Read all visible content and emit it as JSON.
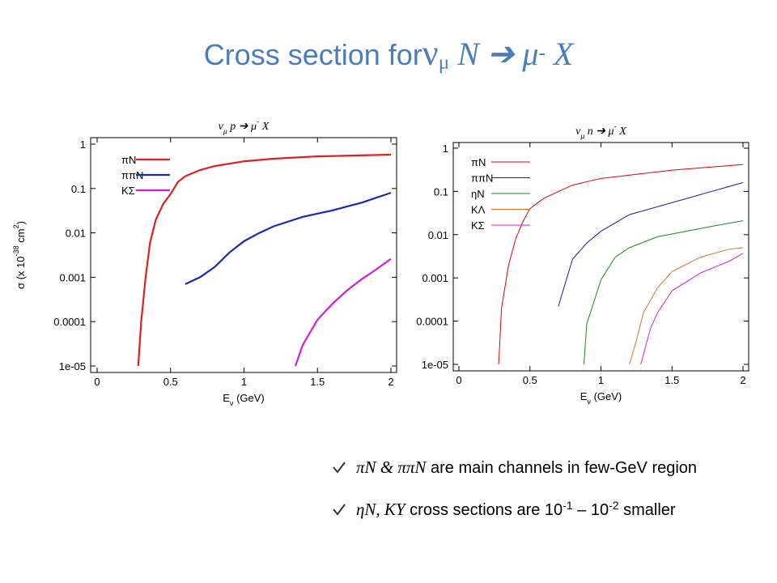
{
  "title": [
    "Cross section for",
    "ν",
    "μ",
    " N ➔ μ",
    "-",
    " X"
  ],
  "bullets": [
    [
      "πN & ππN",
      " are main channels in few-GeV region"
    ],
    [
      "ηN, KY",
      " cross sections are 10",
      "-1",
      " – 10",
      "-2",
      " smaller"
    ]
  ],
  "chart_data": [
    {
      "type": "line",
      "title": [
        "ν",
        "μ",
        " p ➔ μ",
        "-",
        " X"
      ],
      "xlabel": [
        "E",
        "ν",
        " (GeV)"
      ],
      "ylabel": [
        "σ (x 10",
        "-38",
        " cm",
        "2",
        ")"
      ],
      "log_y": true,
      "legend": "upper left",
      "xlim": [
        0,
        2
      ],
      "xticks": [
        0,
        0.5,
        1,
        1.5,
        2
      ],
      "ylim": [
        1e-05,
        1
      ],
      "yticks": [
        {
          "value": 1e-05,
          "label": "1e-05"
        },
        0.0001,
        0.001,
        0.01,
        0.1,
        1
      ],
      "series": [
        {
          "name": "πN",
          "color": "#e02020",
          "x": [
            0.28,
            0.3,
            0.33,
            0.36,
            0.4,
            0.45,
            0.5,
            0.55,
            0.6,
            0.7,
            0.8,
            1.0,
            1.2,
            1.5,
            2.0
          ],
          "values": [
            1e-05,
            0.0001,
            0.001,
            0.006,
            0.02,
            0.045,
            0.075,
            0.14,
            0.19,
            0.26,
            0.32,
            0.41,
            0.47,
            0.53,
            0.58
          ]
        },
        {
          "name": "ππN",
          "color": "#1a2ab0",
          "x": [
            0.6,
            0.7,
            0.8,
            0.9,
            1.0,
            1.1,
            1.2,
            1.4,
            1.6,
            1.8,
            2.0
          ],
          "values": [
            0.0007,
            0.001,
            0.0017,
            0.0036,
            0.0065,
            0.0098,
            0.014,
            0.023,
            0.032,
            0.048,
            0.08
          ]
        },
        {
          "name": "KΣ",
          "color": "#d020d0",
          "x": [
            1.35,
            1.4,
            1.5,
            1.6,
            1.7,
            1.8,
            1.9,
            2.0
          ],
          "values": [
            1e-05,
            3e-05,
            0.00011,
            0.00025,
            0.0005,
            0.0009,
            0.0015,
            0.0026
          ]
        }
      ]
    },
    {
      "type": "line",
      "title": [
        "ν",
        "μ",
        " n ➔ μ",
        "-",
        " X"
      ],
      "xlabel": [
        "E",
        "ν",
        " (GeV)"
      ],
      "log_y": true,
      "legend": "upper left",
      "xlim": [
        0,
        2
      ],
      "xticks": [
        0,
        0.5,
        1,
        1.5,
        2
      ],
      "ylim": [
        1e-05,
        1
      ],
      "yticks": [
        {
          "value": 1e-05,
          "label": "1e-05"
        },
        0.0001,
        0.001,
        0.01,
        0.1,
        1
      ],
      "series": [
        {
          "name": "πN",
          "color": "#e00000",
          "x": [
            0.28,
            0.3,
            0.35,
            0.4,
            0.45,
            0.5,
            0.6,
            0.8,
            1.0,
            1.5,
            2.0
          ],
          "values": [
            1e-05,
            0.0002,
            0.002,
            0.008,
            0.02,
            0.04,
            0.07,
            0.14,
            0.2,
            0.31,
            0.42
          ]
        },
        {
          "name": "ππN",
          "color": "#1a1ab0",
          "x": [
            0.7,
            0.8,
            0.9,
            1.0,
            1.2,
            1.5,
            2.0
          ],
          "values": [
            0.00022,
            0.0027,
            0.0064,
            0.012,
            0.029,
            0.055,
            0.16
          ]
        },
        {
          "name": "ηN",
          "color": "#1a8a1a",
          "x": [
            0.88,
            0.9,
            1.0,
            1.1,
            1.2,
            1.4,
            1.6,
            1.8,
            2.0
          ],
          "values": [
            1e-05,
            8.6e-05,
            0.0009,
            0.003,
            0.005,
            0.009,
            0.012,
            0.016,
            0.021
          ]
        },
        {
          "name": "KΛ",
          "color": "#e07020",
          "x": [
            1.2,
            1.25,
            1.3,
            1.4,
            1.5,
            1.7,
            1.9,
            2.0
          ],
          "values": [
            1e-05,
            3.6e-05,
            0.00016,
            0.0006,
            0.0014,
            0.003,
            0.0046,
            0.005
          ]
        },
        {
          "name": "KΣ",
          "color": "#d020d0",
          "x": [
            1.28,
            1.35,
            1.4,
            1.5,
            1.7,
            1.9,
            2.0
          ],
          "values": [
            1e-05,
            7e-05,
            0.00016,
            0.0005,
            0.0013,
            0.0024,
            0.0037
          ]
        }
      ]
    }
  ]
}
